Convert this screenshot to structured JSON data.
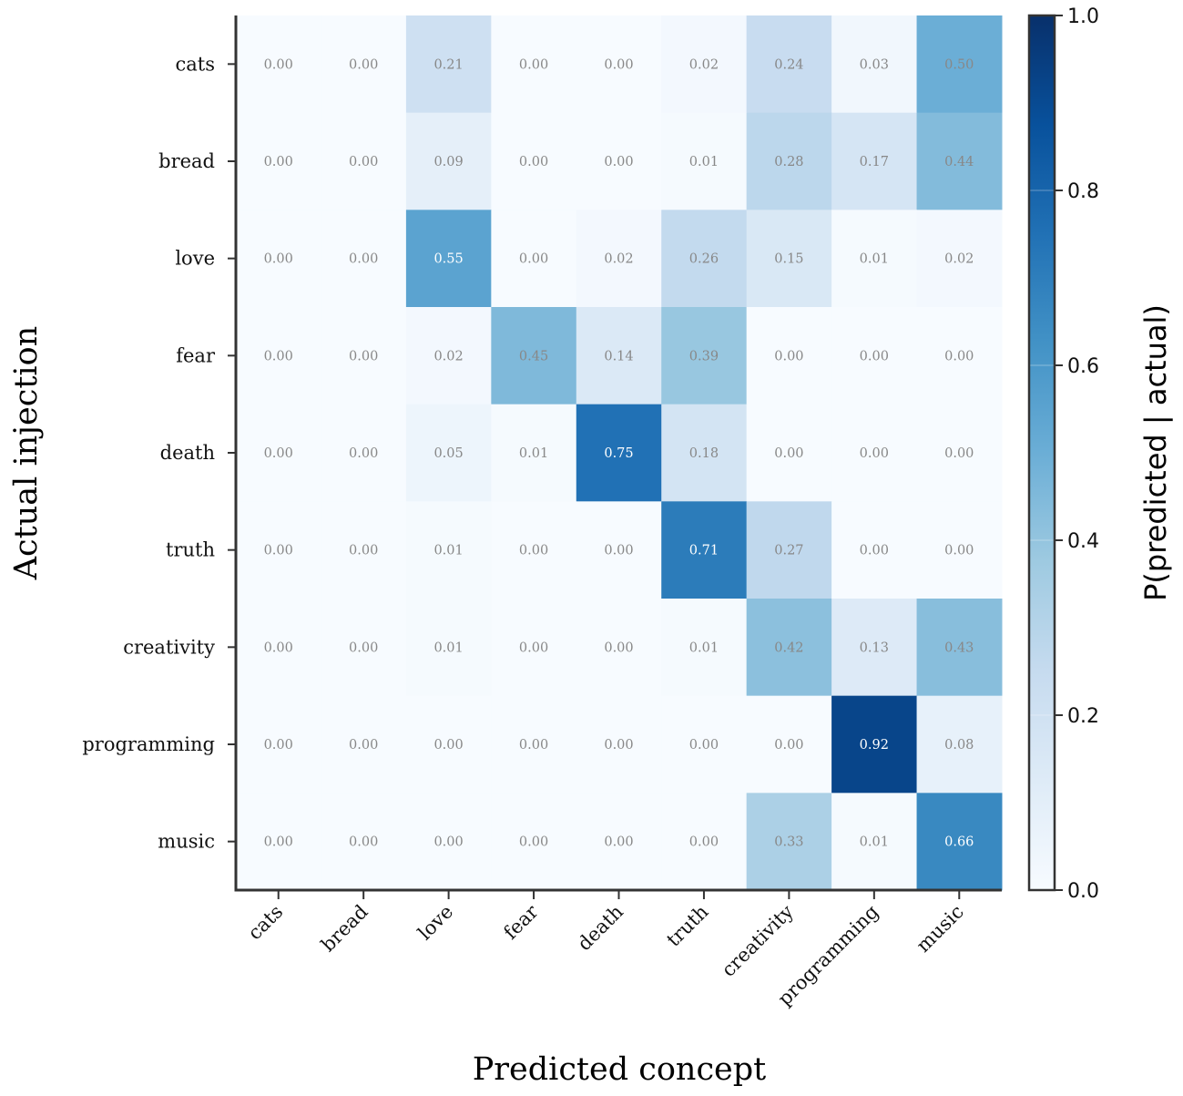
{
  "chart_data": {
    "type": "heatmap",
    "xlabel": "Predicted concept",
    "ylabel": "Actual injection",
    "x_categories": [
      "cats",
      "bread",
      "love",
      "fear",
      "death",
      "truth",
      "creativity",
      "programming",
      "music"
    ],
    "y_categories": [
      "cats",
      "bread",
      "love",
      "fear",
      "death",
      "truth",
      "creativity",
      "programming",
      "music"
    ],
    "values": [
      [
        0.0,
        0.0,
        0.21,
        0.0,
        0.0,
        0.02,
        0.24,
        0.03,
        0.5
      ],
      [
        0.0,
        0.0,
        0.09,
        0.0,
        0.0,
        0.01,
        0.28,
        0.17,
        0.44
      ],
      [
        0.0,
        0.0,
        0.55,
        0.0,
        0.02,
        0.26,
        0.15,
        0.01,
        0.02
      ],
      [
        0.0,
        0.0,
        0.02,
        0.45,
        0.14,
        0.39,
        0.0,
        0.0,
        0.0
      ],
      [
        0.0,
        0.0,
        0.05,
        0.01,
        0.75,
        0.18,
        0.0,
        0.0,
        0.0
      ],
      [
        0.0,
        0.0,
        0.01,
        0.0,
        0.0,
        0.71,
        0.27,
        0.0,
        0.0
      ],
      [
        0.0,
        0.0,
        0.01,
        0.0,
        0.0,
        0.01,
        0.42,
        0.13,
        0.43
      ],
      [
        0.0,
        0.0,
        0.0,
        0.0,
        0.0,
        0.0,
        0.0,
        0.92,
        0.08
      ],
      [
        0.0,
        0.0,
        0.0,
        0.0,
        0.0,
        0.0,
        0.33,
        0.01,
        0.66
      ]
    ],
    "colormap": "Blues",
    "vmin": 0.0,
    "vmax": 1.0,
    "colorbar": {
      "label": "P(predicted | actual)",
      "ticks": [
        "0.0",
        "0.2",
        "0.4",
        "0.6",
        "0.8",
        "1.0"
      ]
    },
    "annotation_colors": {
      "light": "#888888",
      "dark": "#ffffff"
    },
    "grid": false
  }
}
